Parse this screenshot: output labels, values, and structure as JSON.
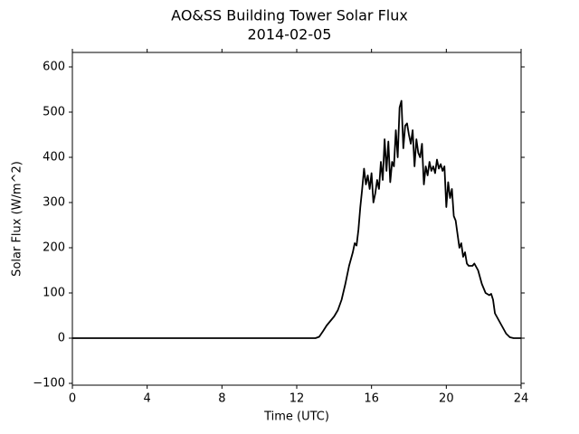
{
  "chart_data": {
    "type": "line",
    "title": "AO&SS Building Tower Solar Flux",
    "subtitle": "2014-02-05",
    "x_label": "Time (UTC)",
    "y_label": "Solar Flux (W/m^2)",
    "color": "#000000",
    "x": [
      0,
      13.0,
      13.2,
      13.4,
      13.6,
      13.8,
      14.0,
      14.2,
      14.4,
      14.6,
      14.8,
      15.0,
      15.1,
      15.2,
      15.3,
      15.4,
      15.5,
      15.6,
      15.7,
      15.8,
      15.9,
      16.0,
      16.1,
      16.2,
      16.3,
      16.4,
      16.5,
      16.6,
      16.7,
      16.8,
      16.9,
      17.0,
      17.1,
      17.2,
      17.3,
      17.4,
      17.5,
      17.6,
      17.7,
      17.8,
      17.9,
      18.0,
      18.1,
      18.2,
      18.3,
      18.4,
      18.5,
      18.6,
      18.7,
      18.8,
      18.9,
      19.0,
      19.1,
      19.2,
      19.3,
      19.4,
      19.5,
      19.6,
      19.7,
      19.8,
      19.9,
      20.0,
      20.1,
      20.2,
      20.3,
      20.4,
      20.5,
      20.6,
      20.7,
      20.8,
      20.9,
      21.0,
      21.1,
      21.2,
      21.4,
      21.5,
      21.7,
      21.9,
      22.1,
      22.3,
      22.4,
      22.5,
      22.6,
      22.8,
      23.0,
      23.2,
      23.4,
      23.6,
      24.0
    ],
    "values": [
      0,
      0,
      3,
      15,
      28,
      38,
      48,
      62,
      85,
      120,
      160,
      190,
      210,
      205,
      240,
      290,
      330,
      375,
      340,
      360,
      330,
      365,
      300,
      320,
      350,
      330,
      390,
      350,
      440,
      370,
      435,
      345,
      390,
      380,
      460,
      400,
      510,
      525,
      420,
      470,
      475,
      450,
      430,
      460,
      380,
      440,
      410,
      400,
      430,
      340,
      380,
      360,
      390,
      370,
      380,
      365,
      395,
      375,
      385,
      370,
      380,
      290,
      345,
      310,
      330,
      270,
      260,
      230,
      200,
      210,
      180,
      190,
      165,
      160,
      160,
      165,
      150,
      120,
      100,
      95,
      98,
      85,
      55,
      40,
      25,
      10,
      2,
      0,
      0
    ],
    "xlim": [
      0,
      24
    ],
    "xticks": [
      0,
      4,
      8,
      12,
      16,
      20,
      24
    ],
    "ylim": [
      -104,
      632
    ],
    "yticks": [
      {
        "value": -100,
        "label": "−100"
      },
      0,
      100,
      200,
      300,
      400,
      500,
      600
    ],
    "grid": false
  }
}
